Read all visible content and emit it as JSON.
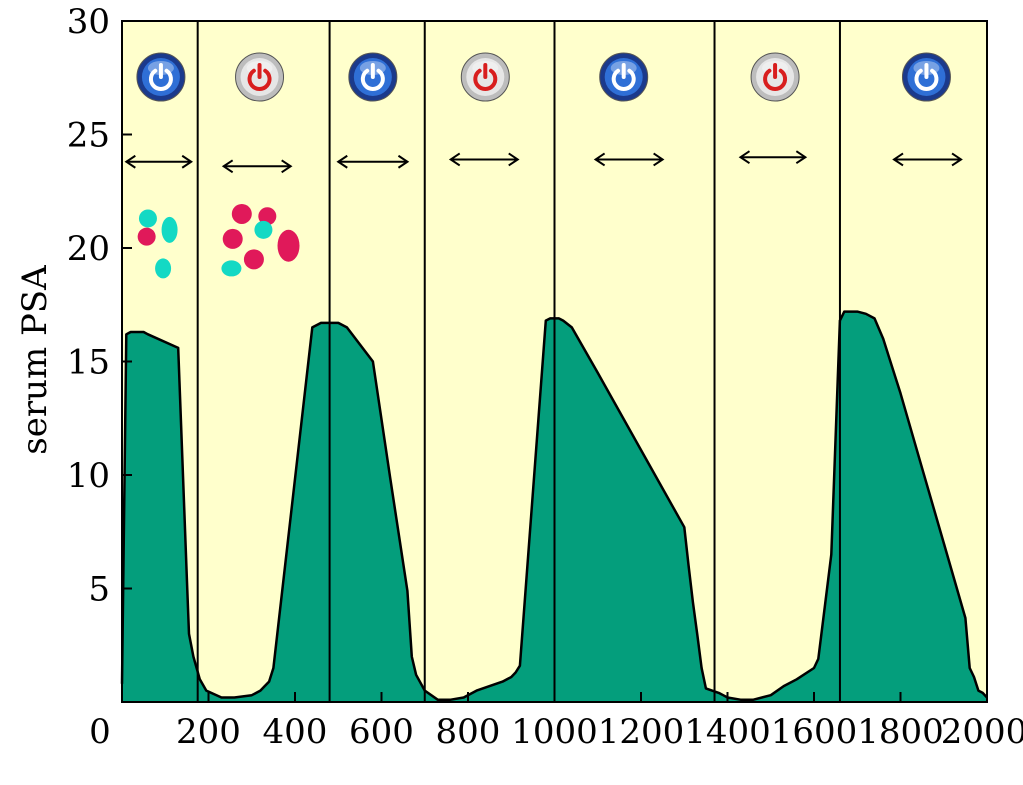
{
  "chart_data": {
    "type": "area",
    "title": "",
    "xlabel": "",
    "ylabel": "serum PSA",
    "xlim": [
      0,
      2000
    ],
    "ylim": [
      0,
      30
    ],
    "x_ticks": [
      "0",
      "200",
      "400",
      "600",
      "800",
      "1000",
      "1200",
      "1400",
      "1600",
      "1800",
      "2000"
    ],
    "x_tick_values": [
      0,
      200,
      400,
      600,
      800,
      1000,
      1200,
      1400,
      1600,
      1800,
      2000
    ],
    "y_ticks": [
      "5",
      "10",
      "15",
      "20",
      "25",
      "30"
    ],
    "y_tick_values": [
      5,
      10,
      15,
      20,
      25,
      30
    ],
    "grid": false,
    "background_color": "#ffffcc",
    "fill_color": "#049e7c",
    "line_color": "#000000",
    "series": [
      {
        "x": [
          0,
          10,
          20,
          40,
          50,
          60,
          130,
          150,
          155,
          165,
          180,
          195,
          230,
          260,
          300,
          320,
          330,
          340,
          350,
          440,
          460,
          480,
          500,
          520,
          580,
          620,
          660,
          670,
          680,
          700,
          730,
          760,
          790,
          820,
          850,
          880,
          900,
          910,
          920,
          980,
          990,
          1000,
          1010,
          1020,
          1040,
          1100,
          1200,
          1300,
          1310,
          1320,
          1330,
          1340,
          1350,
          1380,
          1390,
          1400,
          1430,
          1460,
          1500,
          1530,
          1560,
          1600,
          1610,
          1640,
          1660,
          1670,
          1690,
          1700,
          1720,
          1740,
          1760,
          1800,
          1850,
          1900,
          1950,
          1960,
          1970,
          1980,
          1990,
          2000
        ],
        "values": [
          0.8,
          16.2,
          16.3,
          16.3,
          16.3,
          16.2,
          15.6,
          5.4,
          3.0,
          2.0,
          1.0,
          0.5,
          0.2,
          0.2,
          0.3,
          0.5,
          0.7,
          0.9,
          1.5,
          16.5,
          16.7,
          16.7,
          16.7,
          16.5,
          15.0,
          9.9,
          4.9,
          2.0,
          1.2,
          0.5,
          0.1,
          0.1,
          0.2,
          0.5,
          0.7,
          0.9,
          1.1,
          1.3,
          1.6,
          16.8,
          16.9,
          16.9,
          16.9,
          16.8,
          16.5,
          14.5,
          11.1,
          7.7,
          6.0,
          4.4,
          3.0,
          1.5,
          0.6,
          0.4,
          0.3,
          0.2,
          0.1,
          0.1,
          0.3,
          0.7,
          1.0,
          1.5,
          1.9,
          6.5,
          16.8,
          17.2,
          17.2,
          17.2,
          17.1,
          16.9,
          16.0,
          13.6,
          10.3,
          7.0,
          3.7,
          1.5,
          1.1,
          0.5,
          0.4,
          0.2
        ]
      }
    ],
    "phase_boundaries": [
      175,
      480,
      700,
      1000,
      1370,
      1660
    ],
    "phase_icons": [
      {
        "x": 90,
        "icon": "power-on-blue-icon"
      },
      {
        "x": 318,
        "icon": "power-off-red-icon"
      },
      {
        "x": 580,
        "icon": "power-on-blue-icon"
      },
      {
        "x": 840,
        "icon": "power-on-red-icon"
      },
      {
        "x": 1160,
        "icon": "power-on-blue-icon"
      },
      {
        "x": 1510,
        "icon": "power-on-red-icon"
      },
      {
        "x": 1860,
        "icon": "power-on-blue-icon"
      }
    ],
    "phase_arrows": [
      {
        "x1": 10,
        "x2": 160,
        "y": 23.8
      },
      {
        "x1": 235,
        "x2": 390,
        "y": 23.6
      },
      {
        "x1": 500,
        "x2": 660,
        "y": 23.8
      },
      {
        "x1": 760,
        "x2": 915,
        "y": 23.9
      },
      {
        "x1": 1095,
        "x2": 1250,
        "y": 23.9
      },
      {
        "x1": 1430,
        "x2": 1580,
        "y": 24.0
      },
      {
        "x1": 1785,
        "x2": 1940,
        "y": 23.9
      }
    ],
    "cell_clusters": [
      {
        "color": "#13d9c4",
        "cx": 60,
        "cy": 21.3,
        "rx": 9,
        "ry": 9
      },
      {
        "color": "#e0195a",
        "cx": 57,
        "cy": 20.5,
        "rx": 9,
        "ry": 9
      },
      {
        "color": "#13d9c4",
        "cx": 110,
        "cy": 20.8,
        "rx": 8,
        "ry": 13
      },
      {
        "color": "#13d9c4",
        "cx": 95,
        "cy": 19.1,
        "rx": 8,
        "ry": 10
      },
      {
        "color": "#e0195a",
        "cx": 277,
        "cy": 21.5,
        "rx": 10,
        "ry": 10
      },
      {
        "color": "#e0195a",
        "cx": 336,
        "cy": 21.4,
        "rx": 9,
        "ry": 9
      },
      {
        "color": "#13d9c4",
        "cx": 327,
        "cy": 20.8,
        "rx": 9,
        "ry": 9
      },
      {
        "color": "#e0195a",
        "cx": 256,
        "cy": 20.4,
        "rx": 10,
        "ry": 10
      },
      {
        "color": "#e0195a",
        "cx": 385,
        "cy": 20.1,
        "rx": 11,
        "ry": 16
      },
      {
        "color": "#e0195a",
        "cx": 305,
        "cy": 19.5,
        "rx": 10,
        "ry": 10
      },
      {
        "color": "#13d9c4",
        "cx": 253,
        "cy": 19.1,
        "rx": 10,
        "ry": 8
      }
    ]
  }
}
